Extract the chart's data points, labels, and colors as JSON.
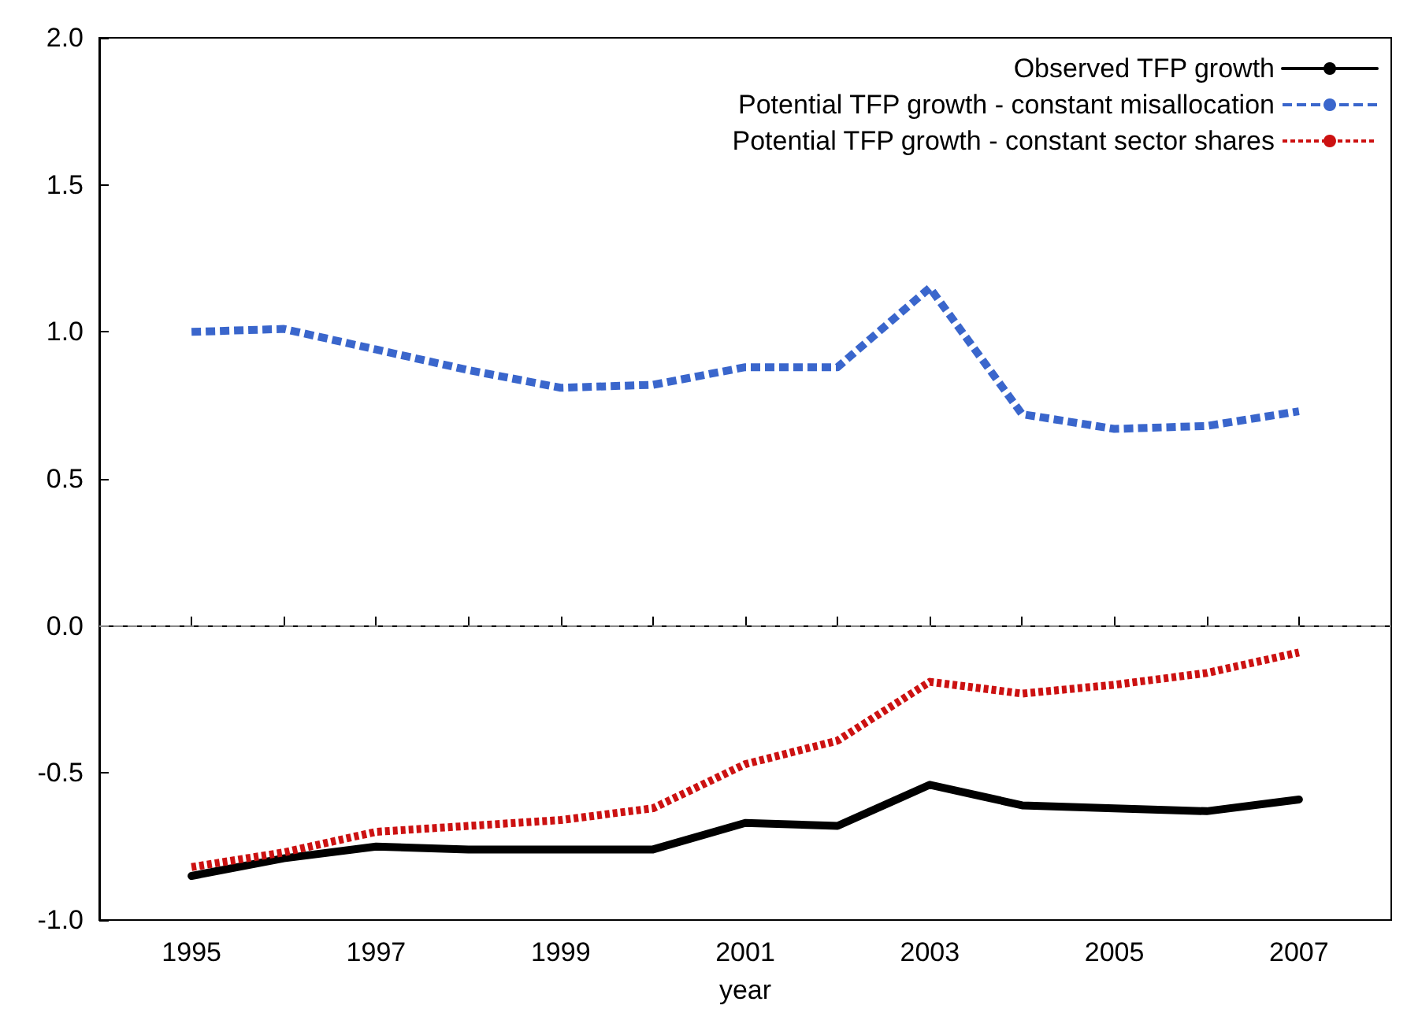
{
  "chart_data": {
    "type": "line",
    "xlabel": "year",
    "x": [
      1995,
      1996,
      1997,
      1998,
      1999,
      2000,
      2001,
      2002,
      2003,
      2004,
      2005,
      2006,
      2007
    ],
    "xlim": [
      1994,
      2008
    ],
    "xticks": [
      1995,
      {
        "value": 1996,
        "label": null
      },
      1997,
      {
        "value": 1998,
        "label": null
      },
      1999,
      {
        "value": 2000,
        "label": null
      },
      2001,
      {
        "value": 2002,
        "label": null
      },
      2003,
      {
        "value": 2004,
        "label": null
      },
      2005,
      {
        "value": 2006,
        "label": null
      },
      2007
    ],
    "ylim": [
      -1.0,
      2.0
    ],
    "yticks": [
      {
        "value": -1,
        "label": "-1.0"
      },
      {
        "value": -0.5,
        "label": "-0.5"
      },
      {
        "value": 0,
        "label": "0.0"
      },
      {
        "value": 0.5,
        "label": "0.5"
      },
      {
        "value": 1,
        "label": "1.0"
      },
      {
        "value": 1.5,
        "label": "1.5"
      },
      {
        "value": 2,
        "label": "2.0"
      }
    ],
    "grid": false,
    "legend": "top right",
    "marker": "none",
    "ref_lines": [
      {
        "axis": "y",
        "value": 0,
        "color": "#888888",
        "line_style": "dashed"
      }
    ],
    "series": [
      {
        "name": "Observed TFP growth",
        "color": "#000000",
        "line_style": "solid",
        "values": [
          -0.85,
          -0.79,
          -0.75,
          -0.76,
          -0.76,
          -0.76,
          -0.67,
          -0.68,
          -0.54,
          -0.61,
          -0.62,
          -0.63,
          -0.59
        ]
      },
      {
        "name": "Potential TFP growth - constant misallocation",
        "color": "#3a66cc",
        "line_style": "dashed",
        "values": [
          1.0,
          1.01,
          0.94,
          0.87,
          0.81,
          0.82,
          0.88,
          0.88,
          1.15,
          0.72,
          0.67,
          0.68,
          0.73
        ]
      },
      {
        "name": "Potential TFP growth - constant sector shares",
        "color": "#cc1111",
        "line_style": "dotted",
        "values": [
          -0.82,
          -0.77,
          -0.7,
          -0.68,
          -0.66,
          -0.62,
          -0.47,
          -0.39,
          -0.19,
          -0.23,
          -0.2,
          -0.16,
          -0.09
        ]
      }
    ]
  }
}
